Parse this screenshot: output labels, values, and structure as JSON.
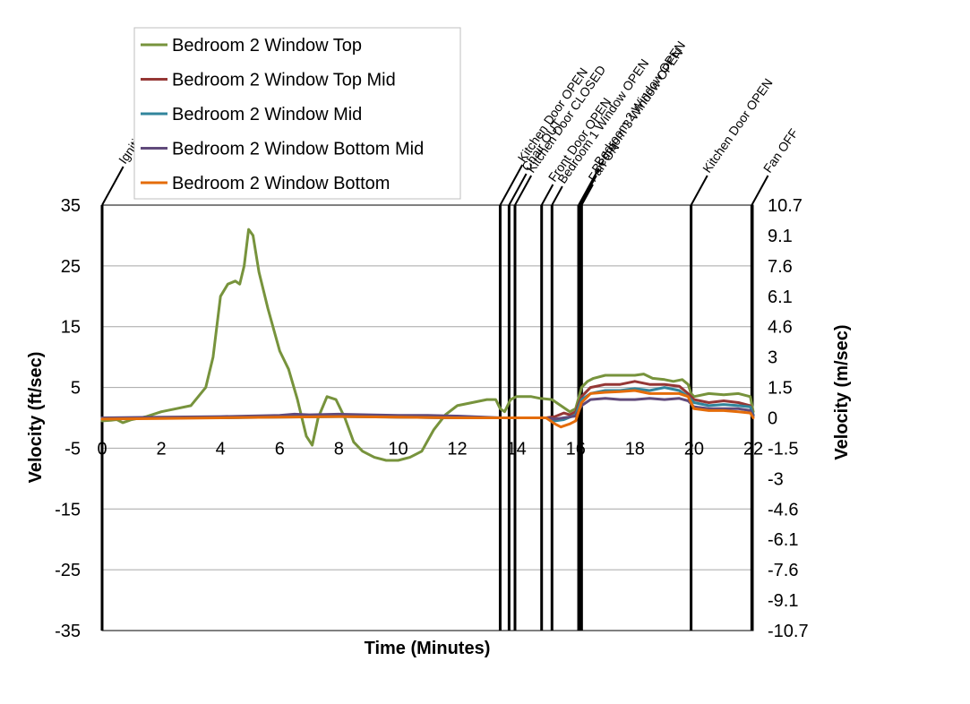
{
  "chart_data": {
    "type": "line",
    "xlabel": "Time (Minutes)",
    "ylabel": "Velocity (ft/sec)",
    "y2label": "Velocity (m/sec)",
    "xlim": [
      0,
      22
    ],
    "ylim": [
      -35,
      35
    ],
    "x_ticks": [
      "0",
      "2",
      "4",
      "6",
      "8",
      "10",
      "12",
      "14",
      "16",
      "18",
      "20",
      "22"
    ],
    "y_ticks": [
      "35",
      "25",
      "15",
      "5",
      "-5",
      "-15",
      "-25",
      "-35"
    ],
    "y2_ticks": [
      "10.7",
      "9.1",
      "7.6",
      "6.1",
      "4.6",
      "3",
      "1.5",
      "0",
      "-1.5",
      "-3",
      "-4.6",
      "-6.1",
      "-7.6",
      "-9.1",
      "-10.7"
    ],
    "grid": "horizontal",
    "legend_position": "top-left",
    "events": [
      {
        "label": "Ignition",
        "x": 0.0
      },
      {
        "label": "Kitchen Door OPEN",
        "x": 13.45
      },
      {
        "label": "Chair OUT",
        "x": 13.75
      },
      {
        "label": "Kitchen Door CLOSED",
        "x": 13.95
      },
      {
        "label": "Front Door OPEN",
        "x": 14.85
      },
      {
        "label": "Bedroom 1 Window OPEN",
        "x": 15.2
      },
      {
        "label": "Bedroom 2 Window OPEN",
        "x": 16.1
      },
      {
        "label": "Bedroom 3 Window OPEN",
        "x": 16.15
      },
      {
        "label": "Fan ON",
        "x": 16.2
      },
      {
        "label": "Kitchen Door OPEN",
        "x": 19.9
      },
      {
        "label": "Fan OFF",
        "x": 21.95
      }
    ],
    "series": [
      {
        "name": "Bedroom 2 Window Top",
        "color": "#77933C",
        "x": [
          0,
          0.3,
          0.5,
          0.7,
          1,
          1.5,
          2,
          2.5,
          3,
          3.5,
          3.75,
          4,
          4.25,
          4.5,
          4.65,
          4.8,
          4.95,
          5.1,
          5.3,
          5.6,
          6,
          6.3,
          6.6,
          6.9,
          7.1,
          7.3,
          7.6,
          7.9,
          8.2,
          8.5,
          8.8,
          9.2,
          9.6,
          10,
          10.4,
          10.8,
          11.2,
          11.6,
          12,
          12.5,
          13,
          13.3,
          13.45,
          13.6,
          13.8,
          14,
          14.5,
          14.8,
          15.2,
          15.5,
          15.8,
          16.0,
          16.2,
          16.4,
          16.6,
          17,
          17.5,
          18,
          18.3,
          18.6,
          19,
          19.3,
          19.6,
          19.8,
          19.9,
          20,
          20.5,
          21,
          21.5,
          21.9,
          22
        ],
        "values": [
          -0.5,
          -0.4,
          -0.3,
          -0.8,
          -0.3,
          0.2,
          1,
          1.5,
          2,
          5,
          10,
          20,
          22,
          22.5,
          22,
          25,
          31,
          30,
          24,
          18,
          11,
          8,
          3,
          -3,
          -4.5,
          0,
          3.5,
          3,
          0,
          -4,
          -5.5,
          -6.5,
          -7,
          -7,
          -6.5,
          -5.5,
          -2,
          0.5,
          2,
          2.5,
          3,
          3,
          1.5,
          1,
          3,
          3.5,
          3.5,
          3.2,
          3,
          2,
          1,
          1.5,
          5,
          6,
          6.5,
          7,
          7,
          7,
          7.2,
          6.5,
          6.3,
          6,
          6.3,
          5.5,
          4,
          3.5,
          4,
          3.8,
          4,
          3.5,
          1
        ]
      },
      {
        "name": "Bedroom 2 Window Top Mid",
        "color": "#953735",
        "x": [
          0,
          2,
          4,
          6,
          8,
          10,
          12,
          13.5,
          14,
          15,
          15.3,
          15.6,
          15.8,
          16,
          16.2,
          16.5,
          17,
          17.5,
          18,
          18.5,
          19,
          19.5,
          19.8,
          20,
          20.5,
          21,
          21.5,
          21.9,
          22
        ],
        "values": [
          0,
          0,
          0,
          0.2,
          0.3,
          0.1,
          0,
          0,
          0,
          0,
          0.2,
          0.8,
          0.5,
          1,
          3.5,
          5,
          5.5,
          5.5,
          6,
          5.5,
          5.5,
          5.2,
          4,
          3,
          2.5,
          2.8,
          2.5,
          2,
          0.5
        ]
      },
      {
        "name": "Bedroom 2 Window Mid",
        "color": "#31859C",
        "x": [
          0,
          2,
          4,
          6,
          8,
          10,
          12,
          13.5,
          14,
          15,
          15.3,
          15.6,
          16,
          16.2,
          16.5,
          17,
          17.5,
          18,
          18.5,
          19,
          19.5,
          19.8,
          20,
          20.5,
          21,
          21.5,
          21.9,
          22
        ],
        "values": [
          0,
          0,
          0,
          0.1,
          0.2,
          0.1,
          0,
          0,
          0,
          0,
          -0.5,
          -0.3,
          0.5,
          3,
          4,
          4.5,
          4.5,
          4.8,
          4.5,
          5,
          4.5,
          3.5,
          2.5,
          2,
          2.2,
          2,
          1.8,
          0.5
        ]
      },
      {
        "name": "Bedroom 2 Window Bottom Mid",
        "color": "#604A7B",
        "x": [
          0,
          2,
          4,
          6,
          6.5,
          7,
          8,
          9,
          10,
          11,
          12,
          13.5,
          14,
          15,
          15.3,
          15.6,
          16,
          16.2,
          16.5,
          17,
          17.5,
          18,
          18.5,
          19,
          19.5,
          19.8,
          20,
          20.5,
          21,
          21.5,
          21.9,
          22
        ],
        "values": [
          0,
          0.1,
          0.2,
          0.4,
          0.6,
          0.5,
          0.6,
          0.5,
          0.4,
          0.4,
          0.3,
          0,
          0,
          0,
          -0.2,
          0,
          0.3,
          2,
          3,
          3.2,
          3,
          3,
          3.2,
          3,
          3.2,
          2.8,
          1.8,
          1.5,
          1.5,
          1.5,
          1.2,
          0.3
        ]
      },
      {
        "name": "Bedroom 2 Window Bottom",
        "color": "#E46C0A",
        "x": [
          0,
          2,
          4,
          6,
          8,
          10,
          12,
          13.5,
          14,
          15,
          15.3,
          15.5,
          15.8,
          16,
          16.2,
          16.5,
          17,
          17.5,
          18,
          18.5,
          19,
          19.5,
          19.8,
          20,
          20.5,
          21,
          21.5,
          21.9,
          22
        ],
        "values": [
          -0.2,
          -0.1,
          0,
          0.1,
          0.2,
          0.1,
          0,
          0,
          0,
          0,
          -1,
          -1.5,
          -1,
          -0.5,
          2.5,
          4,
          4.2,
          4.3,
          4.5,
          4,
          4,
          4,
          3.5,
          1.5,
          1.2,
          1.2,
          1,
          0.8,
          0
        ]
      }
    ]
  }
}
